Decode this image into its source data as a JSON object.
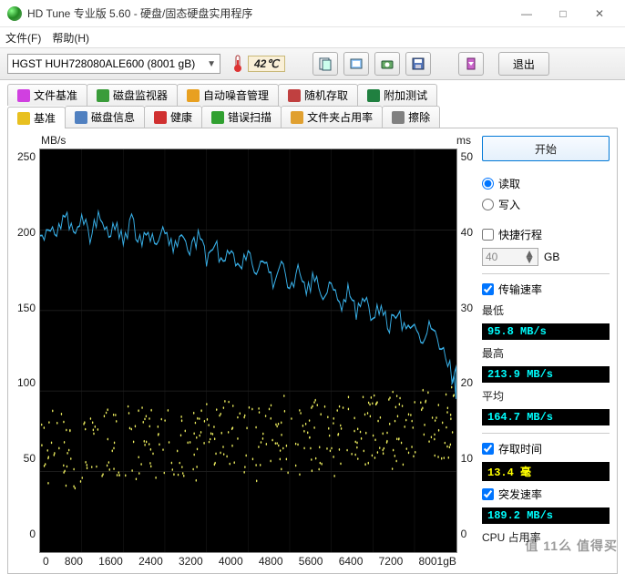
{
  "window": {
    "title": "HD Tune 专业版 5.60 - 硬盘/固态硬盘实用程序"
  },
  "menu": {
    "file": "文件(F)",
    "help": "帮助(H)"
  },
  "toolbar": {
    "drive": "HGST HUH728080ALE600 (8001 gB)",
    "temp": "42℃",
    "exit": "退出"
  },
  "tabs_row1": [
    {
      "icon": "#d040e0",
      "label": "文件基准"
    },
    {
      "icon": "#3a9c3a",
      "label": "磁盘监视器"
    },
    {
      "icon": "#e8a020",
      "label": "自动噪音管理"
    },
    {
      "icon": "#c04040",
      "label": "随机存取"
    },
    {
      "icon": "#208040",
      "label": "附加测试"
    }
  ],
  "tabs_row2": [
    {
      "icon": "#e8c020",
      "label": "基准",
      "active": true
    },
    {
      "icon": "#5080c0",
      "label": "磁盘信息"
    },
    {
      "icon": "#d03030",
      "label": "健康"
    },
    {
      "icon": "#30a030",
      "label": "错误扫描"
    },
    {
      "icon": "#e0a030",
      "label": "文件夹占用率"
    },
    {
      "icon": "#808080",
      "label": "擦除"
    }
  ],
  "chart": {
    "y_left_label": "MB/s",
    "y_right_label": "ms",
    "y_left_ticks": [
      "250",
      "200",
      "150",
      "100",
      "50",
      "0"
    ],
    "y_right_ticks": [
      "50",
      "40",
      "30",
      "20",
      "10",
      "0"
    ],
    "x_ticks": [
      "0",
      "800",
      "1600",
      "2400",
      "3200",
      "4000",
      "4800",
      "5600",
      "6400",
      "7200",
      "8001gB"
    ],
    "line_color": "#38b0e8",
    "scatter_color": "#f0f060",
    "grid_color": "#1f1f1f",
    "transfer_line": [
      [
        0,
        196
      ],
      [
        20,
        200
      ],
      [
        40,
        195
      ],
      [
        60,
        212
      ],
      [
        80,
        198
      ],
      [
        100,
        208
      ],
      [
        120,
        196
      ],
      [
        140,
        210
      ],
      [
        160,
        198
      ],
      [
        180,
        204
      ],
      [
        200,
        192
      ],
      [
        220,
        205
      ],
      [
        240,
        193
      ],
      [
        260,
        200
      ],
      [
        280,
        190
      ],
      [
        300,
        202
      ],
      [
        320,
        188
      ],
      [
        340,
        198
      ],
      [
        360,
        186
      ],
      [
        380,
        196
      ],
      [
        400,
        182
      ],
      [
        420,
        192
      ],
      [
        440,
        178
      ],
      [
        460,
        190
      ],
      [
        480,
        175
      ],
      [
        500,
        186
      ],
      [
        520,
        172
      ],
      [
        540,
        182
      ],
      [
        560,
        168
      ],
      [
        580,
        178
      ],
      [
        600,
        164
      ],
      [
        620,
        175
      ],
      [
        640,
        160
      ],
      [
        660,
        172
      ],
      [
        680,
        156
      ],
      [
        700,
        168
      ],
      [
        720,
        152
      ],
      [
        740,
        162
      ],
      [
        760,
        148
      ],
      [
        780,
        158
      ],
      [
        800,
        144
      ],
      [
        820,
        154
      ],
      [
        840,
        140
      ],
      [
        860,
        150
      ],
      [
        880,
        135
      ],
      [
        900,
        146
      ],
      [
        920,
        130
      ],
      [
        940,
        142
      ],
      [
        960,
        124
      ],
      [
        980,
        120
      ],
      [
        1000,
        100
      ],
      [
        1000,
        112
      ],
      [
        985,
        98
      ]
    ],
    "transfer_jitter": 10,
    "scatter_y_range": [
      9,
      18
    ],
    "scatter_n": 380
  },
  "panel": {
    "start": "开始",
    "read": "读取",
    "write": "写入",
    "read_checked": true,
    "short": "快捷行程",
    "short_checked": false,
    "short_val": "40",
    "short_unit": "GB",
    "transfer_rate": "传输速率",
    "transfer_checked": true,
    "min_label": "最低",
    "min_val": "95.8 MB/s",
    "max_label": "最高",
    "max_val": "213.9 MB/s",
    "avg_label": "平均",
    "avg_val": "164.7 MB/s",
    "access_label": "存取时间",
    "access_checked": true,
    "access_val": "13.4 毫",
    "burst_label": "突发速率",
    "burst_checked": true,
    "burst_val": "189.2 MB/s",
    "cpu_label": "CPU 占用率"
  },
  "watermark": "值            11么  值得买"
}
